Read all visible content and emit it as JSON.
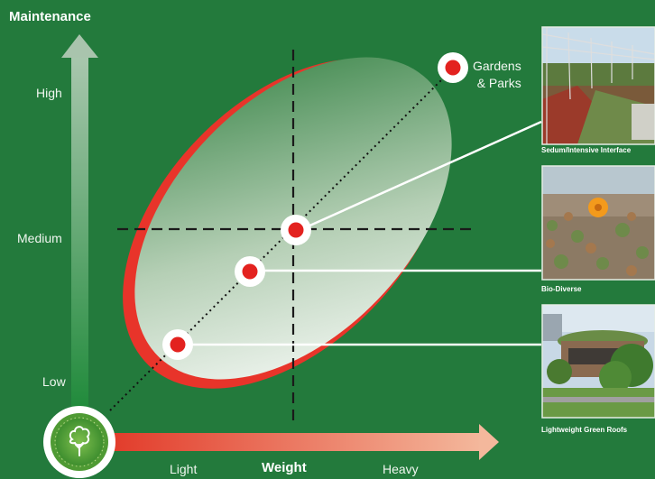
{
  "title": "Maintenance",
  "y_axis": {
    "high": "High",
    "medium": "Medium",
    "low": "Low"
  },
  "x_axis": {
    "light": "Light",
    "label": "Weight",
    "heavy": "Heavy"
  },
  "gardens_label_line1": "Gardens",
  "gardens_label_line2": "& Parks",
  "photos": [
    {
      "caption": "Sedum/Intensive Interface"
    },
    {
      "caption": "Bio-Diverse"
    },
    {
      "caption": "Lightweight Green Roofs"
    }
  ],
  "colors": {
    "background": "#237a3c",
    "accent_red": "#e8342a",
    "arrow_orange": "#f0a080"
  }
}
